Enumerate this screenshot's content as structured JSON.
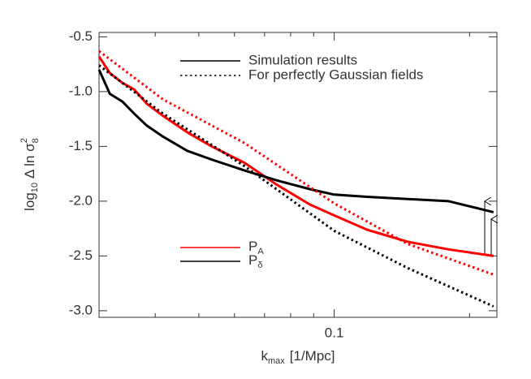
{
  "chart_data": {
    "type": "line",
    "xlabel": [
      "k",
      "max",
      "[1/Mpc]"
    ],
    "ylabel": [
      "log",
      "10",
      "Δ ln σ",
      "8",
      "2"
    ],
    "xlog": true,
    "xlim": [
      0.03,
      0.23
    ],
    "xticks": [
      0.1
    ],
    "xminorticks": [
      0.04,
      0.05,
      0.06,
      0.07,
      0.08,
      0.09,
      0.2
    ],
    "ylim": [
      -3.06,
      -0.46
    ],
    "yticks": [
      -0.5,
      {
        "value": -1.0,
        "label": "-1.0"
      },
      -1.5,
      {
        "value": -2.0,
        "label": "-2.0"
      },
      -2.5,
      {
        "value": -3.0,
        "label": "-3.0"
      }
    ],
    "legend_styles": [
      {
        "label": "Simulation results",
        "dash": "solid"
      },
      {
        "label": "For perfectly Gaussian fields",
        "dash": "dotted"
      }
    ],
    "legend_quantities": [
      {
        "label": "P",
        "sub": "A",
        "color": "#ff0000"
      },
      {
        "label": "P",
        "sub": "δ",
        "color": "#000000"
      }
    ],
    "series": [
      {
        "color": "#ff0000",
        "dash": "solid",
        "x": [
          0.03,
          0.0317,
          0.0338,
          0.0359,
          0.0383,
          0.0416,
          0.0471,
          0.0534,
          0.0632,
          0.0746,
          0.0882,
          0.1,
          0.1182,
          0.1457,
          0.1796,
          0.226
        ],
        "values": [
          -0.68,
          -0.83,
          -0.92,
          -0.98,
          -1.11,
          -1.22,
          -1.37,
          -1.5,
          -1.65,
          -1.85,
          -2.03,
          -2.13,
          -2.26,
          -2.37,
          -2.44,
          -2.5
        ]
      },
      {
        "color": "#000000",
        "dash": "solid",
        "x": [
          0.03,
          0.0317,
          0.0338,
          0.0359,
          0.0383,
          0.0416,
          0.0471,
          0.0534,
          0.0632,
          0.0746,
          0.0882,
          0.1,
          0.1182,
          0.1457,
          0.1796,
          0.226
        ],
        "values": [
          -0.8,
          -1.02,
          -1.09,
          -1.2,
          -1.31,
          -1.41,
          -1.54,
          -1.62,
          -1.72,
          -1.81,
          -1.89,
          -1.94,
          -1.96,
          -1.98,
          -2.0,
          -2.1
        ]
      },
      {
        "color": "#ff0000",
        "dash": "dotted",
        "x": [
          0.03,
          0.0416,
          0.0632,
          0.1,
          0.1457,
          0.226
        ],
        "values": [
          -0.63,
          -1.07,
          -1.47,
          -2.02,
          -2.39,
          -2.67
        ]
      },
      {
        "color": "#000000",
        "dash": "dotted",
        "x": [
          0.03,
          0.0416,
          0.0632,
          0.1,
          0.1457,
          0.226
        ],
        "values": [
          -0.76,
          -1.2,
          -1.68,
          -2.27,
          -2.61,
          -2.96
        ]
      }
    ]
  }
}
